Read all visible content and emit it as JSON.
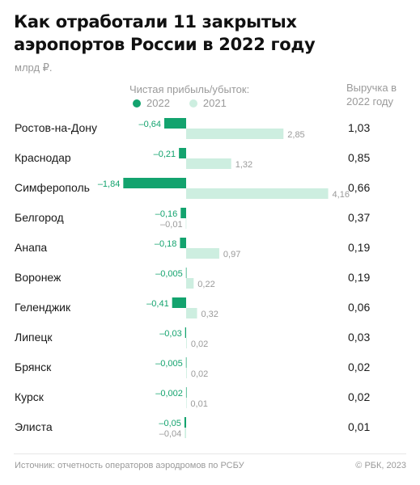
{
  "title": "Как отработали 11 закрытых аэропортов России в 2022 году",
  "unit": "млрд ₽.",
  "series_heading": "Чистая прибыль/убыток:",
  "revenue_heading": "Выручка в 2022 году",
  "source": "Источник: отчетность операторов аэродромов по РСБУ",
  "copyright": "© РБК, 2023",
  "colors": {
    "series_2022": "#13a36e",
    "series_2021": "#cdeee0",
    "text": "#1a1a1a",
    "muted": "#9a9a9a",
    "value_2022_label": "#13a36e"
  },
  "chart_data": {
    "type": "bar",
    "orientation": "horizontal",
    "categories": [
      "Ростов-на-Дону",
      "Краснодар",
      "Симферополь",
      "Белгород",
      "Анапа",
      "Воронеж",
      "Геленджик",
      "Липецк",
      "Брянск",
      "Курск",
      "Элиста"
    ],
    "series": [
      {
        "name": "2022",
        "values": [
          -0.64,
          -0.21,
          -1.84,
          -0.16,
          -0.18,
          -0.005,
          -0.41,
          -0.03,
          -0.005,
          -0.002,
          -0.05
        ],
        "labels": [
          "–0,64",
          "–0,21",
          "–1,84",
          "–0,16",
          "–0,18",
          "–0,005",
          "–0,41",
          "–0,03",
          "–0,005",
          "–0,002",
          "–0,05"
        ]
      },
      {
        "name": "2021",
        "values": [
          2.85,
          1.32,
          4.16,
          -0.01,
          0.97,
          0.22,
          0.32,
          0.02,
          0.02,
          0.01,
          -0.04
        ],
        "labels": [
          "2,85",
          "1,32",
          "4,16",
          "–0,01",
          "0,97",
          "0,22",
          "0,32",
          "0,02",
          "0,02",
          "0,01",
          "–0,04"
        ]
      }
    ],
    "revenue_2022": [
      "1,03",
      "0,85",
      "0,66",
      "0,37",
      "0,19",
      "0,19",
      "0,06",
      "0,03",
      "0,02",
      "0,02",
      "0,01"
    ],
    "legend_position": "top",
    "grid": false
  }
}
